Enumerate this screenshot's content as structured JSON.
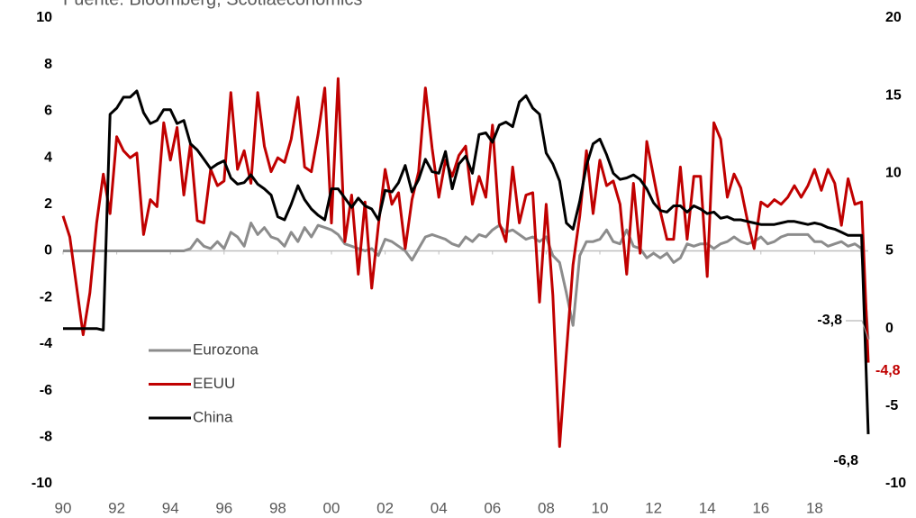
{
  "chart_data": {
    "type": "line",
    "subtitle": "Fuente: Bloomberg, Scotiaeconomics",
    "x": [
      1990,
      1990.25,
      1990.5,
      1990.75,
      1991,
      1991.25,
      1991.5,
      1991.75,
      1992,
      1992.25,
      1992.5,
      1992.75,
      1993,
      1993.25,
      1993.5,
      1993.75,
      1994,
      1994.25,
      1994.5,
      1994.75,
      1995,
      1995.25,
      1995.5,
      1995.75,
      1996,
      1996.25,
      1996.5,
      1996.75,
      1997,
      1997.25,
      1997.5,
      1997.75,
      1998,
      1998.25,
      1998.5,
      1998.75,
      1999,
      1999.25,
      1999.5,
      1999.75,
      2000,
      2000.25,
      2000.5,
      2000.75,
      2001,
      2001.25,
      2001.5,
      2001.75,
      2002,
      2002.25,
      2002.5,
      2002.75,
      2003,
      2003.25,
      2003.5,
      2003.75,
      2004,
      2004.25,
      2004.5,
      2004.75,
      2005,
      2005.25,
      2005.5,
      2005.75,
      2006,
      2006.25,
      2006.5,
      2006.75,
      2007,
      2007.25,
      2007.5,
      2007.75,
      2008,
      2008.25,
      2008.5,
      2008.75,
      2009,
      2009.25,
      2009.5,
      2009.75,
      2010,
      2010.25,
      2010.5,
      2010.75,
      2011,
      2011.25,
      2011.5,
      2011.75,
      2012,
      2012.25,
      2012.5,
      2012.75,
      2013,
      2013.25,
      2013.5,
      2013.75,
      2014,
      2014.25,
      2014.5,
      2014.75,
      2015,
      2015.25,
      2015.5,
      2015.75,
      2016,
      2016.25,
      2016.5,
      2016.75,
      2017,
      2017.25,
      2017.5,
      2017.75,
      2018,
      2018.25,
      2018.5,
      2018.75,
      2019,
      2019.25,
      2019.5,
      2019.75,
      2020
    ],
    "series": [
      {
        "name": "Eurozona",
        "color": "#8c8c8c",
        "axis": "y",
        "values": [
          0,
          0,
          0,
          0,
          0,
          0,
          0,
          0,
          0,
          0,
          0,
          0,
          0,
          0,
          0,
          0,
          0,
          0,
          0,
          0.1,
          0.5,
          0.2,
          0.1,
          0.4,
          0.1,
          0.8,
          0.6,
          0.2,
          1.2,
          0.7,
          1.0,
          0.6,
          0.5,
          0.2,
          0.8,
          0.4,
          1.0,
          0.6,
          1.1,
          1.0,
          0.9,
          0.7,
          0.3,
          0.2,
          0.1,
          0.0,
          0.1,
          -0.2,
          0.5,
          0.4,
          0.2,
          0.0,
          -0.4,
          0.1,
          0.6,
          0.7,
          0.6,
          0.5,
          0.3,
          0.2,
          0.6,
          0.4,
          0.7,
          0.6,
          0.9,
          1.1,
          0.8,
          0.9,
          0.7,
          0.5,
          0.6,
          0.4,
          0.6,
          -0.2,
          -0.5,
          -1.8,
          -3.2,
          -0.2,
          0.4,
          0.4,
          0.5,
          0.9,
          0.4,
          0.3,
          0.9,
          0.2,
          0.1,
          -0.3,
          -0.1,
          -0.3,
          -0.1,
          -0.5,
          -0.3,
          0.3,
          0.2,
          0.3,
          0.3,
          0.1,
          0.3,
          0.4,
          0.6,
          0.4,
          0.3,
          0.4,
          0.6,
          0.3,
          0.4,
          0.6,
          0.7,
          0.7,
          0.7,
          0.7,
          0.4,
          0.4,
          0.2,
          0.3,
          0.4,
          0.2,
          0.3,
          0.1,
          -3.8
        ],
        "value_labels": [
          null,
          null,
          null,
          null,
          null,
          null,
          null,
          null,
          null,
          null,
          null,
          null,
          null,
          null,
          null,
          null,
          null,
          null,
          null,
          null,
          null,
          null,
          null,
          null,
          null,
          null,
          null,
          null,
          null,
          null,
          null,
          null,
          null,
          null,
          null,
          null,
          null,
          null,
          null,
          null,
          null,
          null,
          null,
          null,
          null,
          null,
          null,
          null,
          null,
          null,
          null,
          null,
          null,
          null,
          null,
          null,
          null,
          null,
          null,
          null,
          null,
          null,
          null,
          null,
          null,
          null,
          null,
          null,
          null,
          null,
          null,
          null,
          null,
          null,
          null,
          null,
          null,
          null,
          null,
          null,
          null,
          null,
          null,
          null,
          null,
          null,
          null,
          null,
          null,
          null,
          null,
          null,
          null,
          null,
          null,
          null,
          null,
          null,
          null,
          null,
          null,
          null,
          null,
          null,
          null,
          null,
          null,
          null,
          null,
          null,
          null,
          null,
          null,
          null,
          null,
          null,
          null,
          null,
          null,
          null,
          "-3,8"
        ]
      },
      {
        "name": "EEUU",
        "color": "#c00000",
        "axis": "y",
        "values": [
          1.5,
          0.6,
          -1.5,
          -3.6,
          -1.8,
          1.2,
          3.3,
          1.6,
          4.9,
          4.3,
          4.0,
          4.2,
          0.7,
          2.2,
          1.9,
          5.5,
          3.9,
          5.3,
          2.4,
          4.6,
          1.3,
          1.2,
          3.5,
          2.8,
          3.0,
          6.8,
          3.5,
          4.3,
          2.9,
          6.8,
          4.5,
          3.4,
          4.0,
          3.8,
          4.8,
          6.6,
          3.6,
          3.4,
          5.0,
          7.0,
          1.2,
          7.4,
          0.4,
          2.4,
          -1.0,
          2.1,
          -1.6,
          1.1,
          3.5,
          2.0,
          2.5,
          0.1,
          2.2,
          3.4,
          7.0,
          4.4,
          2.3,
          3.9,
          3.2,
          4.1,
          4.5,
          2.0,
          3.2,
          2.3,
          5.4,
          1.2,
          0.4,
          3.6,
          1.2,
          2.4,
          2.5,
          -2.2,
          2.0,
          -1.9,
          -8.4,
          -4.4,
          -0.6,
          1.5,
          4.3,
          1.6,
          3.9,
          2.8,
          3.0,
          2.0,
          -1.0,
          2.9,
          -0.1,
          4.7,
          3.2,
          1.7,
          0.5,
          0.5,
          3.6,
          0.5,
          3.2,
          3.2,
          -1.1,
          5.5,
          4.8,
          2.3,
          3.3,
          2.7,
          1.3,
          0.1,
          2.1,
          1.9,
          2.2,
          2.0,
          2.3,
          2.8,
          2.3,
          2.8,
          3.5,
          2.6,
          3.5,
          2.9,
          1.1,
          3.1,
          2.0,
          2.1,
          -4.8
        ],
        "value_labels": [
          null,
          null,
          null,
          null,
          null,
          null,
          null,
          null,
          null,
          null,
          null,
          null,
          null,
          null,
          null,
          null,
          null,
          null,
          null,
          null,
          null,
          null,
          null,
          null,
          null,
          null,
          null,
          null,
          null,
          null,
          null,
          null,
          null,
          null,
          null,
          null,
          null,
          null,
          null,
          null,
          null,
          null,
          null,
          null,
          null,
          null,
          null,
          null,
          null,
          null,
          null,
          null,
          null,
          null,
          null,
          null,
          null,
          null,
          null,
          null,
          null,
          null,
          null,
          null,
          null,
          null,
          null,
          null,
          null,
          null,
          null,
          null,
          null,
          null,
          null,
          null,
          null,
          null,
          null,
          null,
          null,
          null,
          null,
          null,
          null,
          null,
          null,
          null,
          null,
          null,
          null,
          null,
          null,
          null,
          null,
          null,
          null,
          null,
          null,
          null,
          null,
          null,
          null,
          null,
          null,
          null,
          null,
          null,
          null,
          null,
          null,
          null,
          null,
          null,
          null,
          null,
          null,
          null,
          null,
          null,
          "-4,8"
        ]
      },
      {
        "name": "China",
        "color": "#000000",
        "axis": "y2",
        "values": [
          0,
          0,
          0,
          0,
          0,
          0,
          -0.1,
          13.8,
          14.2,
          14.9,
          14.9,
          15.3,
          13.9,
          13.2,
          13.4,
          14.1,
          14.1,
          13.2,
          13.4,
          11.9,
          11.5,
          10.9,
          10.3,
          10.6,
          10.8,
          9.7,
          9.3,
          9.4,
          9.9,
          9.3,
          9.0,
          8.6,
          7.2,
          7.0,
          8.0,
          9.2,
          8.3,
          7.7,
          7.3,
          7.0,
          9.0,
          9.0,
          8.4,
          7.8,
          8.4,
          7.9,
          7.7,
          7.0,
          8.9,
          8.8,
          9.4,
          10.5,
          8.8,
          9.6,
          10.9,
          10.1,
          10.0,
          11.4,
          9.0,
          10.6,
          11.1,
          10.0,
          12.5,
          12.6,
          12.0,
          13.1,
          13.3,
          13.0,
          14.6,
          15.0,
          14.2,
          13.8,
          11.3,
          10.6,
          9.5,
          6.8,
          6.4,
          8.2,
          10.5,
          11.9,
          12.2,
          11.2,
          10.0,
          9.6,
          9.7,
          9.9,
          9.6,
          9.0,
          8.1,
          7.6,
          7.5,
          7.9,
          7.9,
          7.5,
          7.9,
          7.7,
          7.4,
          7.5,
          7.1,
          7.2,
          7.0,
          7.0,
          6.9,
          6.8,
          6.7,
          6.7,
          6.7,
          6.8,
          6.9,
          6.9,
          6.8,
          6.7,
          6.8,
          6.7,
          6.5,
          6.4,
          6.2,
          6.0,
          6.0,
          6.0,
          -6.8
        ],
        "value_labels": [
          null,
          null,
          null,
          null,
          null,
          null,
          null,
          null,
          null,
          null,
          null,
          null,
          null,
          null,
          null,
          null,
          null,
          null,
          null,
          null,
          null,
          null,
          null,
          null,
          null,
          null,
          null,
          null,
          null,
          null,
          null,
          null,
          null,
          null,
          null,
          null,
          null,
          null,
          null,
          null,
          null,
          null,
          null,
          null,
          null,
          null,
          null,
          null,
          null,
          null,
          null,
          null,
          null,
          null,
          null,
          null,
          null,
          null,
          null,
          null,
          null,
          null,
          null,
          null,
          null,
          null,
          null,
          null,
          null,
          null,
          null,
          null,
          null,
          null,
          null,
          null,
          null,
          null,
          null,
          null,
          null,
          null,
          null,
          null,
          null,
          null,
          null,
          null,
          null,
          null,
          null,
          null,
          null,
          null,
          null,
          null,
          null,
          null,
          null,
          null,
          null,
          null,
          null,
          null,
          null,
          null,
          null,
          null,
          null,
          null,
          null,
          null,
          null,
          null,
          null,
          null,
          null,
          null,
          null,
          null,
          "-6,8"
        ]
      }
    ],
    "xlim": [
      1990,
      2020
    ],
    "xticks": [
      {
        "value": 1990,
        "label": "90"
      },
      {
        "value": 1992,
        "label": "92"
      },
      {
        "value": 1994,
        "label": "94"
      },
      {
        "value": 1996,
        "label": "96"
      },
      {
        "value": 1998,
        "label": "98"
      },
      {
        "value": 2000,
        "label": "00"
      },
      {
        "value": 2002,
        "label": "02"
      },
      {
        "value": 2004,
        "label": "04"
      },
      {
        "value": 2006,
        "label": "06"
      },
      {
        "value": 2008,
        "label": "08"
      },
      {
        "value": 2010,
        "label": "10"
      },
      {
        "value": 2012,
        "label": "12"
      },
      {
        "value": 2014,
        "label": "14"
      },
      {
        "value": 2016,
        "label": "16"
      },
      {
        "value": 2018,
        "label": "18"
      }
    ],
    "ylim": [
      -10,
      10
    ],
    "yticks": [
      -10,
      -8,
      -6,
      -4,
      -2,
      0,
      2,
      4,
      6,
      8,
      10
    ],
    "y2lim": [
      -10,
      20
    ],
    "y2ticks": [
      -10,
      -5,
      0,
      5,
      10,
      15,
      20
    ],
    "grid": false,
    "legend": "lower left"
  }
}
